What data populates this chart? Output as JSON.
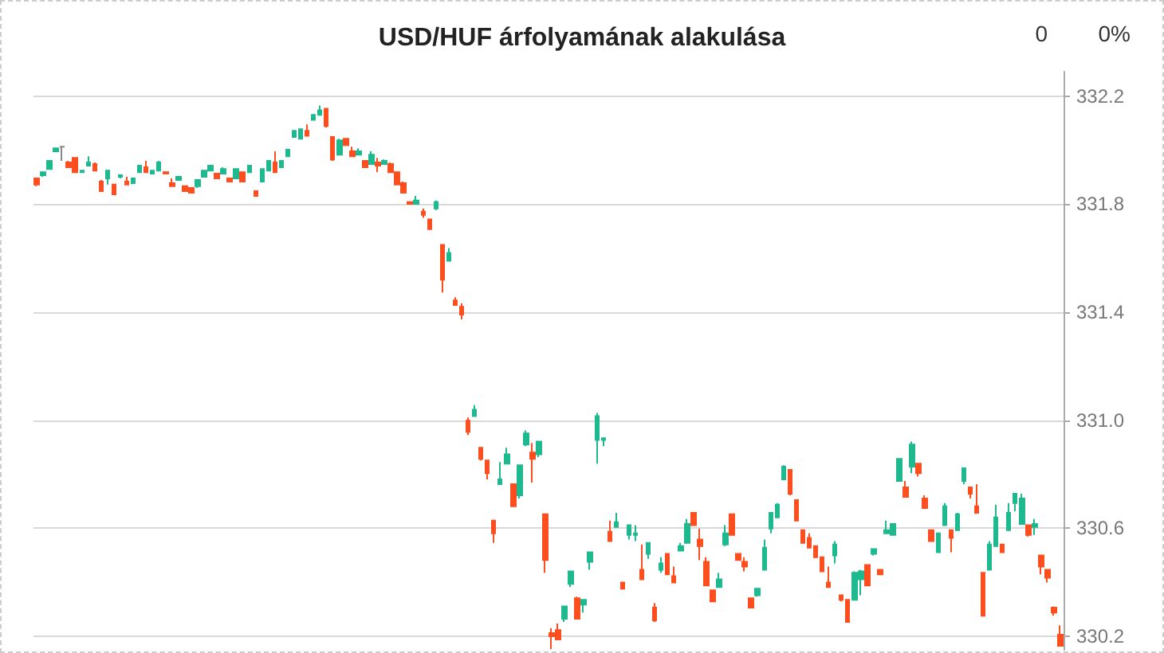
{
  "chart_data": {
    "type": "candlestick",
    "title": "USD/HUF árfolyamának alakulása",
    "annotations": [
      "0",
      "0%"
    ],
    "categories": [
      null,
      null,
      null,
      null,
      null,
      null,
      null,
      null,
      null,
      null,
      null,
      null,
      null,
      null,
      null,
      null,
      null,
      null,
      null,
      null,
      null,
      null,
      null,
      null,
      null,
      null,
      null,
      null,
      null,
      null,
      null,
      null,
      null,
      null,
      null,
      null,
      null,
      null,
      null,
      null,
      null,
      null,
      null,
      null,
      null,
      null,
      null,
      null,
      null,
      null,
      null,
      null,
      null,
      null,
      null,
      null,
      null,
      null,
      null,
      null,
      null,
      null,
      null,
      null,
      null,
      null,
      null,
      null,
      null,
      null,
      null,
      null,
      null,
      null,
      null,
      null,
      null,
      null,
      null,
      null,
      null,
      null,
      null,
      null,
      null,
      null,
      null,
      null,
      null,
      null,
      null,
      null,
      null,
      null,
      null,
      null,
      null,
      null,
      null,
      null,
      null,
      null,
      null,
      null,
      null,
      null,
      null,
      null,
      null,
      null,
      null,
      null,
      null,
      null,
      null,
      null,
      null,
      null,
      null,
      null,
      null,
      null,
      null,
      null,
      null,
      null,
      null,
      null,
      null,
      null,
      null,
      null,
      null,
      null,
      null,
      null,
      null,
      null,
      null,
      null,
      null,
      null,
      null,
      null,
      null,
      null,
      null,
      null,
      null,
      null,
      null,
      null,
      null,
      null,
      null,
      null,
      null,
      null,
      null,
      null
    ],
    "ohlc": [
      [
        331.895,
        331.895,
        331.866,
        331.872
      ],
      [
        331.907,
        331.918,
        331.901,
        331.918
      ],
      [
        331.93,
        331.96,
        331.93,
        331.96
      ],
      [
        331.995,
        332.006,
        331.995,
        332.006
      ],
      [
        332.012,
        332.012,
        331.96,
        332.012
      ],
      [
        331.954,
        331.96,
        331.936,
        331.936
      ],
      [
        331.971,
        331.971,
        331.918,
        331.918
      ],
      [
        331.918,
        331.924,
        331.918,
        331.924
      ],
      [
        331.942,
        331.977,
        331.942,
        331.954
      ],
      [
        331.948,
        331.954,
        331.924,
        331.924
      ],
      [
        331.883,
        331.889,
        331.848,
        331.848
      ],
      [
        331.895,
        331.924,
        331.872,
        331.924
      ],
      [
        331.872,
        331.872,
        331.836,
        331.836
      ],
      [
        331.901,
        331.907,
        331.895,
        331.907
      ],
      [
        331.883,
        331.901,
        331.872,
        331.872
      ],
      [
        331.877,
        331.895,
        331.877,
        331.895
      ],
      [
        331.918,
        331.942,
        331.918,
        331.942
      ],
      [
        331.936,
        331.96,
        331.918,
        331.918
      ],
      [
        331.913,
        331.924,
        331.913,
        331.924
      ],
      [
        331.924,
        331.96,
        331.924,
        331.954
      ],
      [
        331.918,
        331.918,
        331.913,
        331.913
      ],
      [
        331.877,
        331.895,
        331.866,
        331.866
      ],
      [
        331.889,
        331.901,
        331.889,
        331.901
      ],
      [
        331.866,
        331.866,
        331.848,
        331.848
      ],
      [
        331.86,
        331.86,
        331.842,
        331.842
      ],
      [
        331.866,
        331.889,
        331.86,
        331.889
      ],
      [
        331.901,
        331.924,
        331.901,
        331.924
      ],
      [
        331.924,
        331.942,
        331.924,
        331.942
      ],
      [
        331.913,
        331.913,
        331.895,
        331.895
      ],
      [
        331.913,
        331.936,
        331.913,
        331.93
      ],
      [
        331.895,
        331.895,
        331.883,
        331.883
      ],
      [
        331.895,
        331.93,
        331.895,
        331.93
      ],
      [
        331.918,
        331.918,
        331.883,
        331.883
      ],
      [
        331.918,
        331.942,
        331.918,
        331.942
      ],
      [
        331.848,
        331.848,
        331.83,
        331.83
      ],
      [
        331.883,
        331.93,
        331.883,
        331.93
      ],
      [
        331.924,
        331.96,
        331.924,
        331.96
      ],
      [
        331.954,
        331.995,
        331.918,
        331.918
      ],
      [
        331.936,
        331.96,
        331.936,
        331.96
      ],
      [
        331.977,
        332.001,
        331.977,
        332.001
      ],
      [
        332.048,
        332.071,
        332.048,
        332.071
      ],
      [
        332.042,
        332.077,
        332.042,
        332.077
      ],
      [
        332.071,
        332.095,
        332.053,
        332.053
      ],
      [
        332.112,
        332.13,
        332.112,
        332.13
      ],
      [
        332.13,
        332.165,
        332.13,
        332.147
      ],
      [
        332.153,
        332.153,
        332.083,
        332.089
      ],
      [
        332.048,
        332.048,
        331.96,
        331.965
      ],
      [
        331.983,
        332.042,
        331.983,
        332.036
      ],
      [
        332.042,
        332.042,
        332.018,
        332.018
      ],
      [
        331.995,
        332.012,
        331.977,
        331.977
      ],
      [
        331.983,
        332.006,
        331.983,
        331.995
      ],
      [
        331.96,
        331.96,
        331.936,
        331.936
      ],
      [
        331.948,
        331.995,
        331.948,
        331.983
      ],
      [
        331.954,
        331.971,
        331.918,
        331.942
      ],
      [
        331.948,
        331.965,
        331.948,
        331.96
      ],
      [
        331.948,
        331.954,
        331.918,
        331.918
      ],
      [
        331.918,
        331.918,
        331.872,
        331.872
      ],
      [
        331.877,
        331.883,
        331.842,
        331.842
      ],
      [
        331.807,
        331.807,
        331.801,
        331.801
      ],
      [
        331.801,
        331.83,
        331.801,
        331.813
      ],
      [
        331.772,
        331.784,
        331.749,
        331.76
      ],
      [
        331.743,
        331.743,
        331.707,
        331.707
      ],
      [
        331.784,
        331.813,
        331.778,
        331.807
      ],
      [
        331.649,
        331.649,
        331.473,
        331.52
      ],
      [
        331.59,
        331.637,
        331.59,
        331.619
      ],
      [
        331.443,
        331.455,
        331.426,
        331.426
      ],
      [
        331.42,
        331.432,
        331.373,
        331.391
      ],
      [
        330.998,
        331.01,
        330.945,
        330.957
      ],
      [
        331.015,
        331.056,
        331.015,
        331.039
      ],
      [
        330.898,
        330.898,
        330.851,
        330.857
      ],
      [
        330.851,
        330.851,
        330.781,
        330.804
      ],
      [
        330.628,
        330.628,
        330.546,
        330.581
      ],
      [
        330.763,
        330.845,
        330.763,
        330.781
      ],
      [
        330.839,
        330.898,
        330.839,
        330.874
      ],
      [
        330.763,
        330.763,
        330.681,
        330.681
      ],
      [
        330.722,
        330.833,
        330.71,
        330.833
      ],
      [
        330.91,
        330.962,
        330.904,
        330.951
      ],
      [
        330.88,
        330.916,
        330.769,
        330.857
      ],
      [
        330.874,
        330.921,
        330.863,
        330.921
      ],
      [
        330.652,
        330.652,
        330.435,
        330.482
      ],
      [
        330.212,
        330.23,
        330.153,
        330.2
      ],
      [
        330.223,
        330.247,
        330.188,
        330.188
      ],
      [
        330.265,
        330.311,
        330.253,
        330.311
      ],
      [
        330.394,
        330.44,
        330.382,
        330.44
      ],
      [
        330.341,
        330.347,
        330.265,
        330.265
      ],
      [
        330.317,
        330.335,
        330.288,
        330.335
      ],
      [
        330.476,
        330.511,
        330.446,
        330.511
      ],
      [
        330.927,
        331.027,
        330.839,
        331.015
      ],
      [
        330.927,
        330.933,
        330.904,
        330.933
      ],
      [
        330.587,
        330.628,
        330.552,
        330.552
      ],
      [
        330.605,
        330.657,
        330.605,
        330.622
      ],
      [
        330.399,
        330.399,
        330.376,
        330.376
      ],
      [
        330.575,
        330.611,
        330.558,
        330.611
      ],
      [
        330.575,
        330.611,
        330.552,
        330.581
      ],
      [
        330.446,
        330.54,
        330.411,
        330.411
      ],
      [
        330.505,
        330.546,
        330.487,
        330.546
      ],
      [
        330.306,
        330.323,
        330.253,
        330.259
      ],
      [
        330.446,
        330.493,
        330.435,
        330.47
      ],
      [
        330.505,
        330.505,
        330.429,
        330.429
      ],
      [
        330.423,
        330.458,
        330.399,
        330.399
      ],
      [
        330.517,
        330.546,
        330.517,
        330.534
      ],
      [
        330.546,
        330.634,
        330.546,
        330.616
      ],
      [
        330.657,
        330.657,
        330.611,
        330.611
      ],
      [
        330.558,
        330.599,
        330.482,
        330.534
      ],
      [
        330.476,
        330.493,
        330.388,
        330.388
      ],
      [
        330.37,
        330.37,
        330.329,
        330.329
      ],
      [
        330.382,
        330.435,
        330.382,
        330.411
      ],
      [
        330.54,
        330.611,
        330.534,
        330.581
      ],
      [
        330.652,
        330.652,
        330.575,
        330.575
      ],
      [
        330.505,
        330.505,
        330.482,
        330.482
      ],
      [
        330.476,
        330.493,
        330.44,
        330.458
      ],
      [
        330.341,
        330.341,
        330.306,
        330.306
      ],
      [
        330.352,
        330.376,
        330.347,
        330.376
      ],
      [
        330.446,
        330.558,
        330.446,
        330.528
      ],
      [
        330.599,
        330.657,
        330.581,
        330.657
      ],
      [
        330.64,
        330.693,
        330.64,
        330.687
      ],
      [
        330.781,
        330.833,
        330.781,
        330.828
      ],
      [
        330.816,
        330.816,
        330.722,
        330.728
      ],
      [
        330.704,
        330.704,
        330.628,
        330.628
      ],
      [
        330.593,
        330.593,
        330.546,
        330.546
      ],
      [
        330.564,
        330.581,
        330.528,
        330.528
      ],
      [
        330.534,
        330.534,
        330.493,
        330.493
      ],
      [
        330.493,
        330.493,
        330.44,
        330.44
      ],
      [
        330.399,
        330.458,
        330.382,
        330.382
      ],
      [
        330.499,
        330.552,
        330.47,
        330.54
      ],
      [
        330.352,
        330.352,
        330.329,
        330.335
      ],
      [
        330.335,
        330.335,
        330.253,
        330.253
      ],
      [
        330.335,
        330.44,
        330.335,
        330.435
      ],
      [
        330.411,
        330.446,
        330.352,
        330.44
      ],
      [
        330.464,
        330.464,
        330.388,
        330.388
      ],
      [
        330.505,
        330.523,
        330.499,
        330.523
      ],
      [
        330.446,
        330.446,
        330.429,
        330.429
      ],
      [
        330.581,
        330.628,
        330.581,
        330.593
      ],
      [
        330.575,
        330.616,
        330.575,
        330.616
      ],
      [
        330.775,
        330.857,
        330.775,
        330.857
      ],
      [
        330.751,
        330.775,
        330.716,
        330.716
      ],
      [
        330.828,
        330.921,
        330.804,
        330.91
      ],
      [
        330.839,
        330.839,
        330.792,
        330.804
      ],
      [
        330.71,
        330.722,
        330.675,
        330.675
      ],
      [
        330.593,
        330.593,
        330.552,
        330.552
      ],
      [
        330.511,
        330.581,
        330.511,
        330.581
      ],
      [
        330.611,
        330.693,
        330.611,
        330.681
      ],
      [
        330.593,
        330.593,
        330.511,
        330.564
      ],
      [
        330.593,
        330.657,
        330.593,
        330.652
      ],
      [
        330.775,
        330.822,
        330.763,
        330.822
      ],
      [
        330.751,
        330.751,
        330.71,
        330.728
      ],
      [
        330.681,
        330.763,
        330.657,
        330.657
      ],
      [
        330.435,
        330.435,
        330.276,
        330.276
      ],
      [
        330.446,
        330.552,
        330.446,
        330.54
      ],
      [
        330.534,
        330.687,
        330.534,
        330.64
      ],
      [
        330.54,
        330.54,
        330.511,
        330.511
      ],
      [
        330.593,
        330.693,
        330.593,
        330.657
      ],
      [
        330.693,
        330.728,
        330.663,
        330.728
      ],
      [
        330.616,
        330.728,
        330.616,
        330.71
      ],
      [
        330.611,
        330.611,
        330.569,
        330.575
      ],
      [
        330.605,
        330.634,
        330.575,
        330.616
      ],
      [
        330.499,
        330.499,
        330.429,
        330.458
      ],
      [
        330.446,
        330.446,
        330.399,
        330.417
      ],
      [
        330.306,
        330.311,
        330.276,
        330.288
      ],
      [
        330.206,
        330.241,
        330.165,
        330.165
      ]
    ],
    "colors": [
      "#fc4e1f",
      "#1fb98f",
      "#1fb98f",
      "#1fb98f",
      "#888888",
      "#fc4e1f",
      "#fc4e1f",
      "#1fb98f",
      "#1fb98f",
      "#fc4e1f",
      "#fc4e1f",
      "#1fb98f",
      "#fc4e1f",
      "#1fb98f",
      "#fc4e1f",
      "#1fb98f",
      "#1fb98f",
      "#fc4e1f",
      "#1fb98f",
      "#1fb98f",
      "#fc4e1f",
      "#fc4e1f",
      "#1fb98f",
      "#fc4e1f",
      "#fc4e1f",
      "#1fb98f",
      "#1fb98f",
      "#1fb98f",
      "#fc4e1f",
      "#1fb98f",
      "#fc4e1f",
      "#1fb98f",
      "#fc4e1f",
      "#1fb98f",
      "#fc4e1f",
      "#1fb98f",
      "#1fb98f",
      "#fc4e1f",
      "#1fb98f",
      "#1fb98f",
      "#1fb98f",
      "#1fb98f",
      "#fc4e1f",
      "#1fb98f",
      "#1fb98f",
      "#fc4e1f",
      "#fc4e1f",
      "#1fb98f",
      "#fc4e1f",
      "#fc4e1f",
      "#1fb98f",
      "#fc4e1f",
      "#1fb98f",
      "#fc4e1f",
      "#1fb98f",
      "#fc4e1f",
      "#fc4e1f",
      "#fc4e1f",
      "#fc4e1f",
      "#1fb98f",
      "#fc4e1f",
      "#fc4e1f",
      "#1fb98f",
      "#fc4e1f",
      "#1fb98f",
      "#fc4e1f",
      "#fc4e1f",
      "#fc4e1f",
      "#1fb98f",
      "#fc4e1f",
      "#fc4e1f",
      "#fc4e1f",
      "#1fb98f",
      "#1fb98f",
      "#fc4e1f",
      "#1fb98f",
      "#1fb98f",
      "#fc4e1f",
      "#1fb98f",
      "#fc4e1f",
      "#fc4e1f",
      "#fc4e1f",
      "#1fb98f",
      "#1fb98f",
      "#fc4e1f",
      "#1fb98f",
      "#1fb98f",
      "#1fb98f",
      "#1fb98f",
      "#fc4e1f",
      "#1fb98f",
      "#fc4e1f",
      "#1fb98f",
      "#1fb98f",
      "#fc4e1f",
      "#1fb98f",
      "#fc4e1f",
      "#1fb98f",
      "#fc4e1f",
      "#fc4e1f",
      "#1fb98f",
      "#1fb98f",
      "#fc4e1f",
      "#fc4e1f",
      "#fc4e1f",
      "#fc4e1f",
      "#1fb98f",
      "#1fb98f",
      "#fc4e1f",
      "#fc4e1f",
      "#fc4e1f",
      "#fc4e1f",
      "#1fb98f",
      "#1fb98f",
      "#1fb98f",
      "#1fb98f",
      "#1fb98f",
      "#fc4e1f",
      "#fc4e1f",
      "#fc4e1f",
      "#fc4e1f",
      "#fc4e1f",
      "#fc4e1f",
      "#fc4e1f",
      "#1fb98f",
      "#fc4e1f",
      "#fc4e1f",
      "#1fb98f",
      "#1fb98f",
      "#fc4e1f",
      "#1fb98f",
      "#fc4e1f",
      "#1fb98f",
      "#1fb98f",
      "#1fb98f",
      "#fc4e1f",
      "#1fb98f",
      "#fc4e1f",
      "#fc4e1f",
      "#fc4e1f",
      "#1fb98f",
      "#1fb98f",
      "#fc4e1f",
      "#1fb98f",
      "#1fb98f",
      "#fc4e1f",
      "#fc4e1f",
      "#fc4e1f",
      "#1fb98f",
      "#1fb98f",
      "#fc4e1f",
      "#1fb98f",
      "#1fb98f",
      "#1fb98f",
      "#fc4e1f",
      "#1fb98f",
      "#fc4e1f",
      "#fc4e1f",
      "#fc4e1f",
      "#fc4e1f"
    ],
    "ylim": [
      330.15,
      332.29
    ],
    "yticks": [
      330.2,
      330.6,
      {
        "value": 331,
        "label": "331.0"
      },
      331.4,
      331.8,
      332.2
    ],
    "grid": "y",
    "tick_labels": "y"
  }
}
